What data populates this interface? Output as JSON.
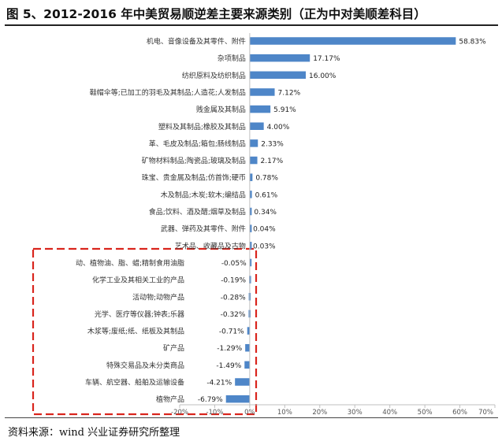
{
  "title": "图 5、2012-2016 年中美贸易顺逆差主要来源类别（正为中对美顺差科目）",
  "source": "资料来源：wind   兴业证券研究所整理",
  "colors": {
    "bar": "#4e86c8",
    "axis": "#bfbfbf",
    "highlight_box": "#d9251d"
  },
  "chart_data": {
    "type": "bar",
    "orientation": "horizontal",
    "categories": [
      "机电、音像设备及其零件、附件",
      "杂项制品",
      "纺织原料及纺织制品",
      "鞋帽伞等;已加工的羽毛及其制品;人造花;人发制品",
      "贱金属及其制品",
      "塑料及其制品;橡胶及其制品",
      "革、毛皮及制品;箱包;肠线制品",
      "矿物材料制品;陶瓷品;玻璃及制品",
      "珠宝、贵金属及制品;仿首饰;硬币",
      "木及制品;木炭;软木;编结品",
      "食品;饮料、酒及醋;烟草及制品",
      "武器、弹药及其零件、附件",
      "艺术品、收藏品及古物",
      "动、植物油、脂、蜡;精制食用油脂",
      "化学工业及其相关工业的产品",
      "活动物;动物产品",
      "光学、医疗等仪器;钟表;乐器",
      "木浆等;废纸;纸、纸板及其制品",
      "矿产品",
      "特殊交易品及未分类商品",
      "车辆、航空器、船舶及运输设备",
      "植物产品"
    ],
    "values": [
      58.83,
      17.17,
      16.0,
      7.12,
      5.91,
      4.0,
      2.33,
      2.17,
      0.78,
      0.61,
      0.34,
      0.04,
      0.03,
      -0.05,
      -0.19,
      -0.28,
      -0.32,
      -0.71,
      -1.29,
      -1.49,
      -4.21,
      -6.79
    ],
    "value_labels": [
      "58.83%",
      "17.17%",
      "16.00%",
      "7.12%",
      "5.91%",
      "4.00%",
      "2.33%",
      "2.17%",
      "0.78%",
      "0.61%",
      "0.34%",
      "0.04%",
      "0.03%",
      "-0.05%",
      "-0.19%",
      "-0.28%",
      "-0.32%",
      "-0.71%",
      "-1.29%",
      "-1.49%",
      "-4.21%",
      "-6.79%"
    ],
    "xlim": [
      -20,
      70
    ],
    "x_ticks": [
      -20,
      -10,
      0,
      10,
      20,
      30,
      40,
      50,
      60,
      70
    ],
    "x_tick_labels": [
      "-20%",
      "-10%",
      "0%",
      "10%",
      "20%",
      "30%",
      "40%",
      "50%",
      "60%",
      "70%"
    ],
    "grid": false,
    "highlight_box_categories": [
      13,
      21
    ]
  }
}
